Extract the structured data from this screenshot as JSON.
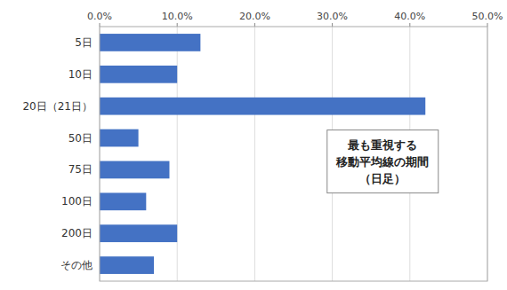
{
  "chart_data": {
    "type": "bar",
    "orientation": "horizontal",
    "categories": [
      "5日",
      "10日",
      "20日（21日）",
      "50日",
      "75日",
      "100日",
      "200日",
      "その他"
    ],
    "values": [
      13.0,
      10.0,
      42.0,
      5.0,
      9.0,
      6.0,
      10.0,
      7.0
    ],
    "color": "#4472C4",
    "xlim": [
      0,
      50
    ],
    "xticks": [
      {
        "value": 0,
        "label": "0.0%"
      },
      {
        "value": 10,
        "label": "10.0%"
      },
      {
        "value": 20,
        "label": "20.0%"
      },
      {
        "value": 30,
        "label": "30.0%"
      },
      {
        "value": 40,
        "label": "40.0%"
      },
      {
        "value": 50,
        "label": "50.0%"
      }
    ],
    "grid": true,
    "annotations": [
      "最も重視する",
      "移動平均線の期間",
      "（日足）"
    ]
  }
}
